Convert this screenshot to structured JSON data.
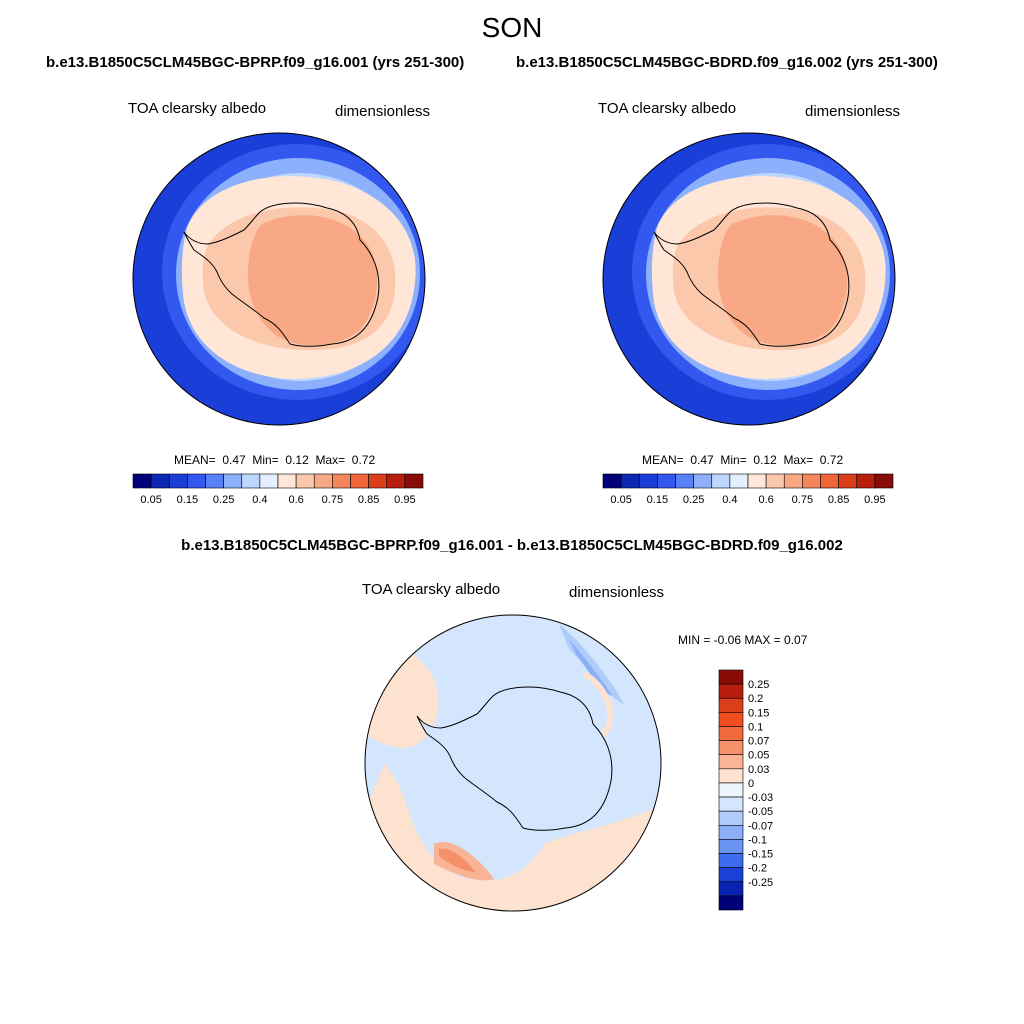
{
  "season": "SON",
  "panels": {
    "left": {
      "case": "b.e13.B1850C5CLM45BGC-BPRP.f09_g16.001 (yrs 251-300)",
      "variable": "TOA clearsky albedo",
      "units": "dimensionless",
      "stats": {
        "mean_label": "MEAN=",
        "mean": "0.47",
        "min_label": "Min=",
        "min": "0.12",
        "max_label": "Max=",
        "max": "0.72"
      }
    },
    "right": {
      "case": "b.e13.B1850C5CLM45BGC-BDRD.f09_g16.002 (yrs 251-300)",
      "variable": "TOA clearsky albedo",
      "units": "dimensionless",
      "stats": {
        "mean_label": "MEAN=",
        "mean": "0.47",
        "min_label": "Min=",
        "min": "0.12",
        "max_label": "Max=",
        "max": "0.72"
      }
    },
    "diff": {
      "title": "b.e13.B1850C5CLM45BGC-BPRP.f09_g16.001 - b.e13.B1850C5CLM45BGC-BDRD.f09_g16.002",
      "variable": "TOA clearsky albedo",
      "units": "dimensionless",
      "minmax": "MIN =  -0.06 MAX =   0.07"
    }
  },
  "colorbar_main": {
    "colors": [
      "#00007a",
      "#0a28b4",
      "#1a3ed8",
      "#3258f0",
      "#5a80f8",
      "#8cb0fc",
      "#bcd6fd",
      "#e4efff",
      "#ffe6d6",
      "#fcc8ac",
      "#f8a884",
      "#f4865c",
      "#f0643a",
      "#dc3e1c",
      "#b81e0e",
      "#8a0c06"
    ],
    "tick_labels": [
      "0.05",
      "0.15",
      "0.25",
      "0.4",
      "0.6",
      "0.75",
      "0.85",
      "0.95"
    ]
  },
  "colorbar_diff": {
    "colors_top_to_bottom": [
      "#8a0c06",
      "#b81e0e",
      "#dc3e1c",
      "#f04e20",
      "#f06a3e",
      "#f4906a",
      "#f8b494",
      "#fde2d0",
      "#eef4fc",
      "#d4e6fe",
      "#b0ccfa",
      "#8cb0f8",
      "#6a94f4",
      "#3e6cf0",
      "#1a42d8",
      "#0a22b0",
      "#000078"
    ],
    "tick_labels": [
      "0.25",
      "0.2",
      "0.15",
      "0.1",
      "0.07",
      "0.05",
      "0.03",
      "0",
      "-0.03",
      "-0.05",
      "-0.07",
      "-0.1",
      "-0.15",
      "-0.2",
      "-0.25"
    ]
  }
}
